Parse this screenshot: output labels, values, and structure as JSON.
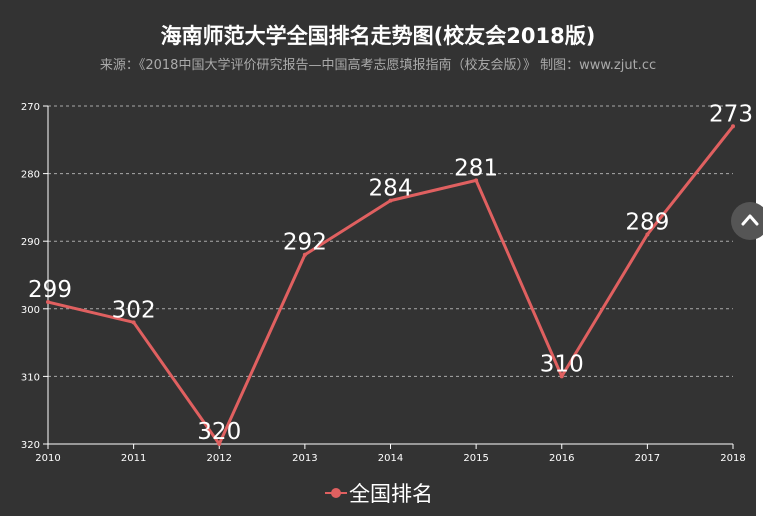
{
  "title": "海南师范大学全国排名走势图(校友会2018版)",
  "subtitle": "来源：《2018中国大学评价研究报告—中国高考志愿填报指南（校友会版）》 制图：www.zjut.cc",
  "colors": {
    "background": "#333333",
    "series": "#e06060",
    "text": "#ffffff",
    "subtext": "#aaaaaa"
  },
  "scroll_icon": "chevron-up-icon",
  "chart_data": {
    "type": "line",
    "title": "海南师范大学全国排名走势图(校友会2018版)",
    "x": [
      "2010",
      "2011",
      "2012",
      "2013",
      "2014",
      "2015",
      "2016",
      "2017",
      "2018"
    ],
    "series": [
      {
        "name": "全国排名",
        "values": [
          299,
          302,
          320,
          292,
          284,
          281,
          310,
          289,
          273
        ]
      }
    ],
    "yticks": [
      "270",
      "280",
      "290",
      "300",
      "310",
      "320"
    ],
    "ylim": [
      270,
      320
    ],
    "y_inverted": true,
    "grid": "horizontal dashed",
    "legend_position": "bottom-center"
  }
}
